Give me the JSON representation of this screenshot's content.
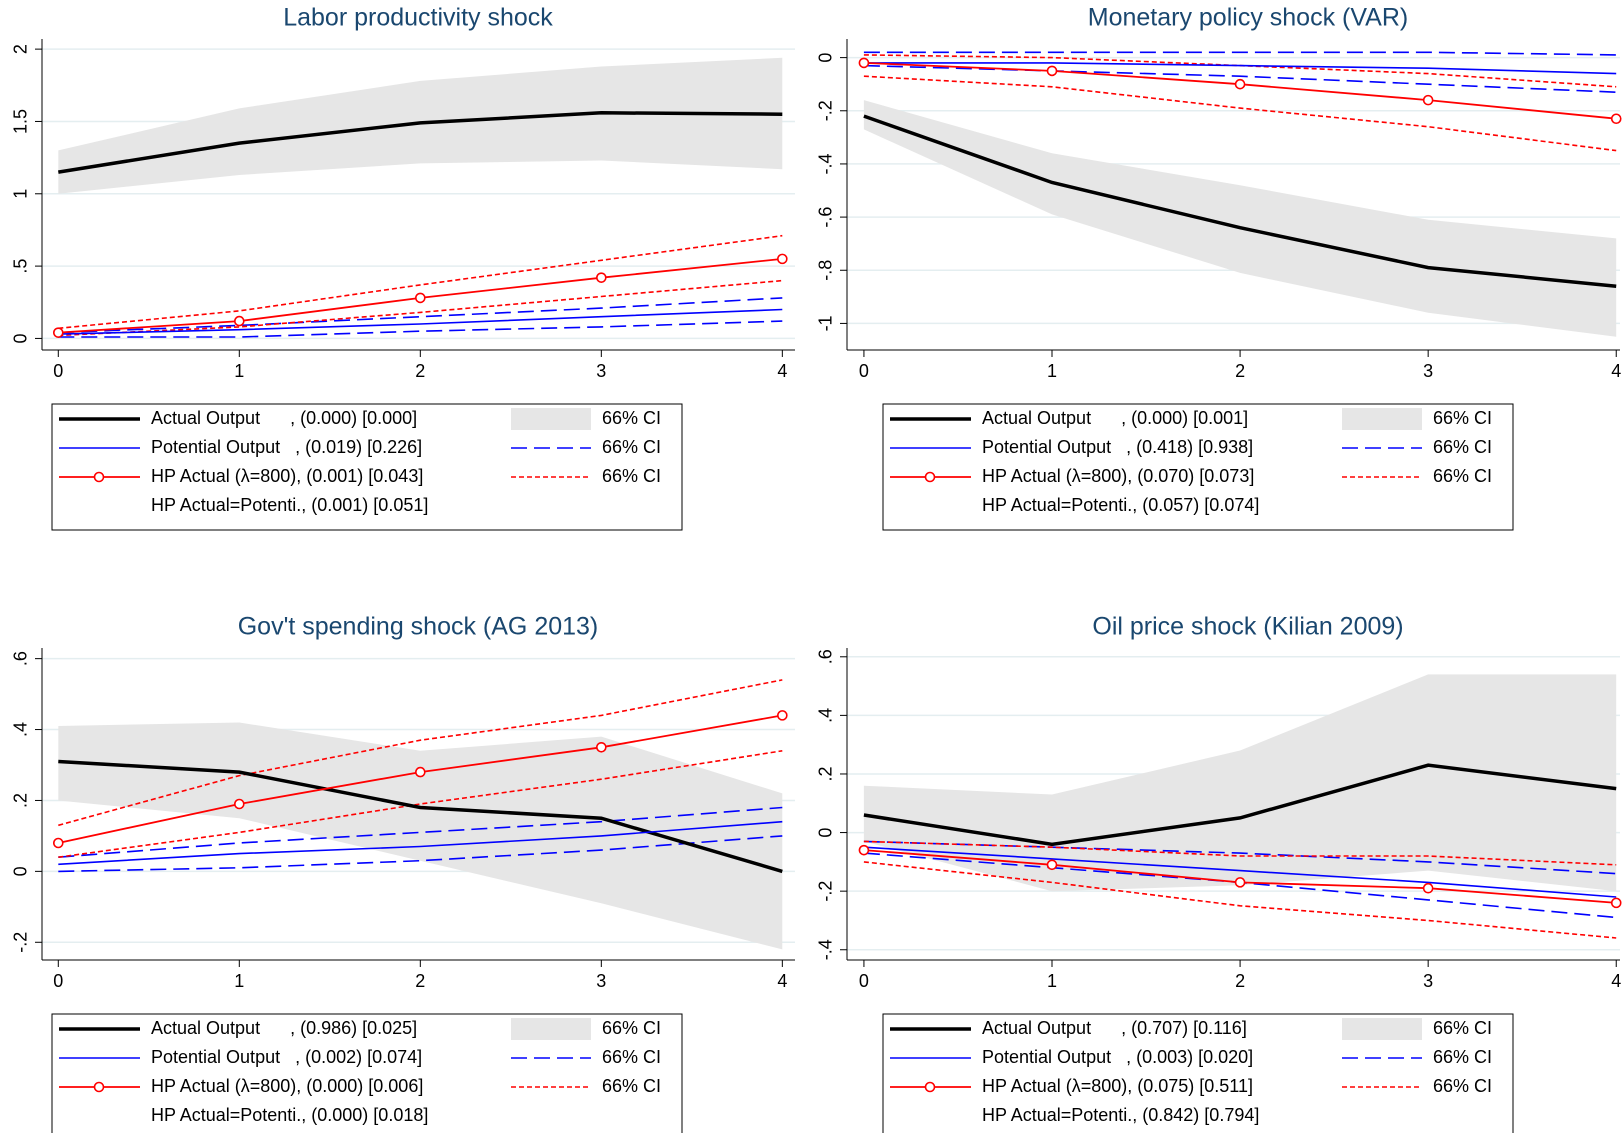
{
  "chart_data": [
    {
      "type": "line",
      "title": "Labor productivity shock",
      "x": [
        0,
        1,
        2,
        3,
        4
      ],
      "xlim": [
        -0.09,
        4.07
      ],
      "xticks": [
        0,
        1,
        2,
        3,
        4
      ],
      "ylim": [
        -0.08,
        2.07
      ],
      "yticks": [
        0,
        {
          "value": 0.5,
          "label": ".5"
        },
        1,
        1.5,
        2
      ],
      "grid": true,
      "series": [
        {
          "name": "Actual Output      , (0.000) [0.000]",
          "color": "#000000",
          "line_width": 3.5,
          "values": [
            1.15,
            1.35,
            1.49,
            1.56,
            1.55
          ]
        },
        {
          "name": "Potential Output   , (0.019) [0.226]",
          "color": "#0000ff",
          "line_width": 1.6,
          "values": [
            0.03,
            0.06,
            0.1,
            0.15,
            0.2
          ]
        },
        {
          "name": "HP Actual (λ=800), (0.001) [0.043]",
          "color": "#ff0000",
          "line_width": 1.8,
          "marker": "circle",
          "values": [
            0.04,
            0.12,
            0.28,
            0.42,
            0.55
          ]
        },
        {
          "name": "66% CI",
          "color": "#e6e6e6",
          "style": "band",
          "lower": [
            1.0,
            1.13,
            1.21,
            1.23,
            1.17
          ],
          "upper": [
            1.3,
            1.59,
            1.78,
            1.88,
            1.94
          ]
        },
        {
          "name": "66% CI",
          "color": "#0000ff",
          "style": "long-dash",
          "lower": [
            0.01,
            0.01,
            0.05,
            0.08,
            0.12
          ],
          "upper": [
            0.04,
            0.09,
            0.15,
            0.21,
            0.28
          ]
        },
        {
          "name": "66% CI",
          "color": "#ff0000",
          "style": "short-dash",
          "lower": [
            0.02,
            0.08,
            0.18,
            0.29,
            0.4
          ],
          "upper": [
            0.07,
            0.19,
            0.37,
            0.54,
            0.71
          ]
        }
      ],
      "legend_note": "HP Actual=Potenti., (0.001) [0.051]"
    },
    {
      "type": "line",
      "title": "Monetary policy shock (VAR)",
      "x": [
        0,
        1,
        2,
        3,
        4
      ],
      "xlim": [
        -0.09,
        4.02
      ],
      "xticks": [
        0,
        1,
        2,
        3,
        4
      ],
      "ylim": [
        -1.1,
        0.07
      ],
      "yticks": [
        {
          "value": -1,
          "label": "-1"
        },
        {
          "value": -0.8,
          "label": "-.8"
        },
        {
          "value": -0.6,
          "label": "-.6"
        },
        {
          "value": -0.4,
          "label": "-.4"
        },
        {
          "value": -0.2,
          "label": "-.2"
        },
        0
      ],
      "grid": true,
      "series": [
        {
          "name": "Actual Output      , (0.000) [0.001]",
          "color": "#000000",
          "line_width": 3.5,
          "values": [
            -0.22,
            -0.47,
            -0.64,
            -0.79,
            -0.86
          ]
        },
        {
          "name": "Potential Output   , (0.418) [0.938]",
          "color": "#0000ff",
          "line_width": 1.6,
          "values": [
            -0.02,
            -0.02,
            -0.03,
            -0.04,
            -0.06
          ]
        },
        {
          "name": "HP Actual (λ=800), (0.070) [0.073]",
          "color": "#ff0000",
          "line_width": 1.8,
          "marker": "circle",
          "values": [
            -0.02,
            -0.05,
            -0.1,
            -0.16,
            -0.23
          ]
        },
        {
          "name": "66% CI",
          "color": "#e6e6e6",
          "style": "band",
          "lower": [
            -0.27,
            -0.59,
            -0.81,
            -0.96,
            -1.05
          ],
          "upper": [
            -0.16,
            -0.36,
            -0.48,
            -0.61,
            -0.68
          ]
        },
        {
          "name": "66% CI",
          "color": "#0000ff",
          "style": "long-dash",
          "lower": [
            -0.03,
            -0.05,
            -0.07,
            -0.1,
            -0.13
          ],
          "upper": [
            0.02,
            0.02,
            0.02,
            0.02,
            0.01
          ]
        },
        {
          "name": "66% CI",
          "color": "#ff0000",
          "style": "short-dash",
          "lower": [
            -0.07,
            -0.11,
            -0.19,
            -0.26,
            -0.35
          ],
          "upper": [
            0.01,
            0.0,
            -0.03,
            -0.06,
            -0.11
          ]
        }
      ],
      "legend_note": "HP Actual=Potenti., (0.057) [0.074]"
    },
    {
      "type": "line",
      "title": "Gov't spending shock (AG 2013)",
      "x": [
        0,
        1,
        2,
        3,
        4
      ],
      "xlim": [
        -0.09,
        4.07
      ],
      "xticks": [
        0,
        1,
        2,
        3,
        4
      ],
      "ylim": [
        -0.25,
        0.63
      ],
      "yticks": [
        {
          "value": -0.2,
          "label": "-.2"
        },
        0,
        {
          "value": 0.2,
          "label": ".2"
        },
        {
          "value": 0.4,
          "label": ".4"
        },
        {
          "value": 0.6,
          "label": ".6"
        }
      ],
      "grid": true,
      "series": [
        {
          "name": "Actual Output      , (0.986) [0.025]",
          "color": "#000000",
          "line_width": 3.5,
          "values": [
            0.31,
            0.28,
            0.18,
            0.15,
            0.0
          ]
        },
        {
          "name": "Potential Output   , (0.002) [0.074]",
          "color": "#0000ff",
          "line_width": 1.6,
          "values": [
            0.02,
            0.05,
            0.07,
            0.1,
            0.14
          ]
        },
        {
          "name": "HP Actual (λ=800), (0.000) [0.006]",
          "color": "#ff0000",
          "line_width": 1.8,
          "marker": "circle",
          "values": [
            0.08,
            0.19,
            0.28,
            0.35,
            0.44
          ]
        },
        {
          "name": "66% CI",
          "color": "#e6e6e6",
          "style": "band",
          "lower": [
            0.2,
            0.15,
            0.03,
            -0.09,
            -0.22
          ],
          "upper": [
            0.41,
            0.42,
            0.34,
            0.38,
            0.22
          ]
        },
        {
          "name": "66% CI",
          "color": "#0000ff",
          "style": "long-dash",
          "lower": [
            0.0,
            0.01,
            0.03,
            0.06,
            0.1
          ],
          "upper": [
            0.04,
            0.08,
            0.11,
            0.14,
            0.18
          ]
        },
        {
          "name": "66% CI",
          "color": "#ff0000",
          "style": "short-dash",
          "lower": [
            0.04,
            0.11,
            0.19,
            0.26,
            0.34
          ],
          "upper": [
            0.13,
            0.27,
            0.37,
            0.44,
            0.54
          ]
        }
      ],
      "legend_note": "HP Actual=Potenti., (0.000) [0.018]"
    },
    {
      "type": "line",
      "title": "Oil price shock (Kilian 2009)",
      "x": [
        0,
        1,
        2,
        3,
        4
      ],
      "xlim": [
        -0.09,
        4.02
      ],
      "xticks": [
        0,
        1,
        2,
        3,
        4
      ],
      "ylim": [
        -0.435,
        0.63
      ],
      "yticks": [
        {
          "value": -0.4,
          "label": "-.4"
        },
        {
          "value": -0.2,
          "label": "-.2"
        },
        0,
        {
          "value": 0.2,
          "label": ".2"
        },
        {
          "value": 0.4,
          "label": ".4"
        },
        {
          "value": 0.6,
          "label": ".6"
        }
      ],
      "grid": true,
      "series": [
        {
          "name": "Actual Output      , (0.707) [0.116]",
          "color": "#000000",
          "line_width": 3.5,
          "values": [
            0.06,
            -0.04,
            0.05,
            0.23,
            0.15
          ]
        },
        {
          "name": "Potential Output   , (0.003) [0.020]",
          "color": "#0000ff",
          "line_width": 1.6,
          "values": [
            -0.05,
            -0.09,
            -0.13,
            -0.17,
            -0.22
          ]
        },
        {
          "name": "HP Actual (λ=800), (0.075) [0.511]",
          "color": "#ff0000",
          "line_width": 1.8,
          "marker": "circle",
          "values": [
            -0.06,
            -0.11,
            -0.17,
            -0.19,
            -0.24
          ]
        },
        {
          "name": "66% CI",
          "color": "#e6e6e6",
          "style": "band",
          "lower": [
            -0.03,
            -0.2,
            -0.18,
            -0.13,
            -0.2
          ],
          "upper": [
            0.16,
            0.13,
            0.28,
            0.54,
            0.54
          ]
        },
        {
          "name": "66% CI",
          "color": "#0000ff",
          "style": "long-dash",
          "lower": [
            -0.07,
            -0.12,
            -0.17,
            -0.23,
            -0.29
          ],
          "upper": [
            -0.03,
            -0.05,
            -0.07,
            -0.1,
            -0.14
          ]
        },
        {
          "name": "66% CI",
          "color": "#ff0000",
          "style": "short-dash",
          "lower": [
            -0.1,
            -0.17,
            -0.25,
            -0.3,
            -0.36
          ],
          "upper": [
            -0.03,
            -0.05,
            -0.08,
            -0.08,
            -0.11
          ]
        }
      ],
      "legend_note": "HP Actual=Potenti., (0.842) [0.794]"
    }
  ]
}
